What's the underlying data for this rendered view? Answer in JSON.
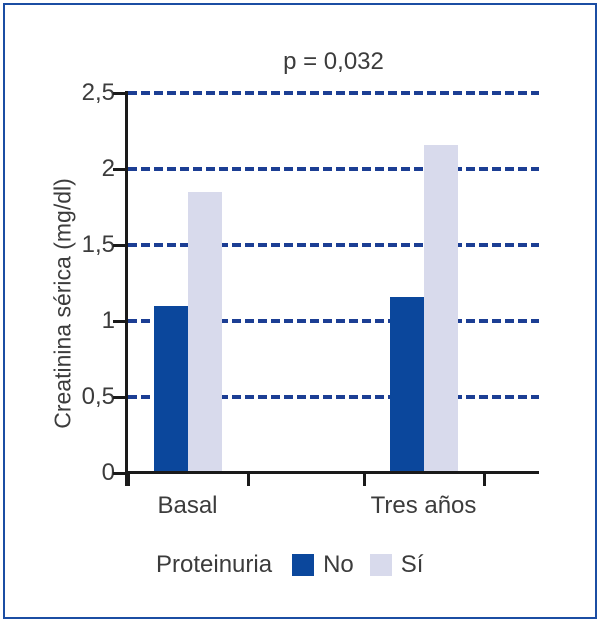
{
  "figure": {
    "border_color": "#1b4da3",
    "background": "#ffffff",
    "text_color": "#3c3c3c"
  },
  "chart_data": {
    "type": "bar",
    "title": "p = 0,032",
    "xlabel": "",
    "ylabel": "Creatinina sérica (mg/dl)",
    "categories": [
      "Basal",
      "Tres años"
    ],
    "series": [
      {
        "name": "No",
        "color": "#0b479c",
        "values": [
          1.1,
          1.16
        ]
      },
      {
        "name": "Sí",
        "color": "#d8daec",
        "values": [
          1.85,
          2.16
        ]
      }
    ],
    "ylim": [
      0,
      2.5
    ],
    "ytick_values": [
      0,
      0.5,
      1,
      1.5,
      2,
      2.5
    ],
    "ytick_labels": [
      "0",
      "0,5",
      "1",
      "1,5",
      "2",
      "2,5"
    ],
    "grid": "horizontal-dashed",
    "gridline_color": "#1c3e94",
    "axis_color": "#1a1a1a",
    "legend_title": "Proteinuria",
    "legend_position": "bottom"
  }
}
